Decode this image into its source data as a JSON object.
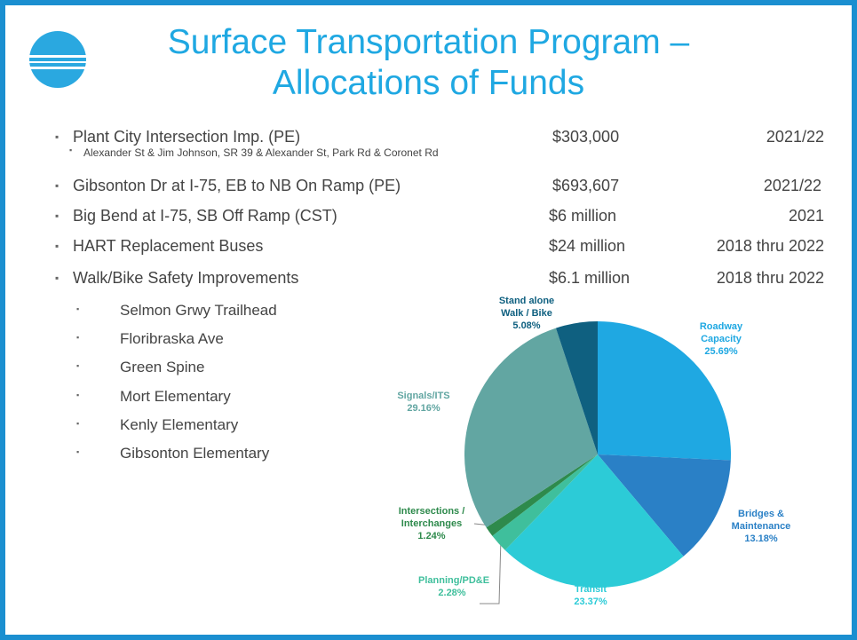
{
  "header": {
    "title_line1": "Surface Transportation Program –",
    "title_line2": "Allocations of Funds"
  },
  "items": [
    {
      "text": "Plant City Intersection Imp. (PE)",
      "amount": "$303,000",
      "year": "2021/22"
    },
    {
      "text": "Gibsonton Dr at I-75, EB to NB On Ramp (PE)",
      "amount": "$693,607",
      "year": "2021/22"
    },
    {
      "text": "Big Bend at I-75, SB Off Ramp (CST)",
      "amount": "$6 million",
      "year": "2021"
    },
    {
      "text": "HART Replacement Buses",
      "amount": "$24 million",
      "year": "2018 thru 2022"
    },
    {
      "text": "Walk/Bike Safety Improvements",
      "amount": "$6.1 million",
      "year": "2018 thru 2022"
    }
  ],
  "item0_sub": "Alexander St & Jim Johnson, SR 39 & Alexander St, Park Rd & Coronet Rd",
  "walk_bike_projects": [
    "Selmon Grwy Trailhead",
    "Floribraska Ave",
    "Green Spine",
    "Mort Elementary",
    "Kenly Elementary",
    "Gibsonton Elementary"
  ],
  "chart_data": {
    "type": "pie",
    "categories": [
      "Roadway Capacity",
      "Bridges & Maintenance",
      "Transit",
      "Planning/PD&E",
      "Intersections / Interchanges",
      "Signals/ITS",
      "Stand alone Walk / Bike"
    ],
    "values": [
      25.69,
      13.18,
      23.37,
      2.28,
      1.24,
      29.16,
      5.08
    ],
    "value_labels": [
      "25.69%",
      "13.18%",
      "23.37%",
      "2.28%",
      "1.24%",
      "29.16%",
      "5.08%"
    ],
    "colors": [
      "#1fa8e2",
      "#2a80c6",
      "#2ccbd7",
      "#3fbf9c",
      "#2e8a4c",
      "#62a6a2",
      "#0f6080"
    ]
  }
}
